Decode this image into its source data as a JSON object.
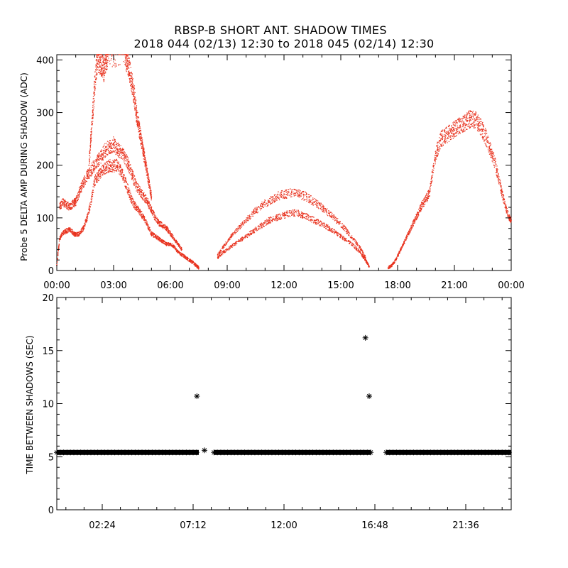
{
  "chart_data": [
    {
      "type": "scatter",
      "title": "RBSP-B SHORT ANT. SHADOW TIMES",
      "subtitle": "2018 044 (02/13) 12:30 to 2018 045 (02/14) 12:30",
      "ylabel": "Probe 5 DELTA AMP DURING SHADOW (ADC)",
      "xlabel": "",
      "xlim": [
        0,
        24
      ],
      "ylim": [
        0,
        410
      ],
      "x_tick_labels": [
        "00:00",
        "03:00",
        "06:00",
        "09:00",
        "12:00",
        "15:00",
        "18:00",
        "21:00",
        "00:00"
      ],
      "y_tick_labels": [
        "0",
        "100",
        "200",
        "300",
        "400"
      ],
      "y_ticks": [
        0,
        100,
        200,
        300,
        400
      ],
      "color": "#e8321e",
      "series": [
        {
          "x": [
            0.0,
            0.15,
            0.3,
            0.5,
            0.7,
            0.9,
            1.0,
            1.2,
            1.4,
            1.6,
            1.8,
            2.0,
            2.2,
            2.4,
            2.6,
            2.8,
            3.0,
            3.2,
            3.4,
            3.6,
            3.8,
            4.0,
            4.2,
            4.4,
            4.6,
            4.8,
            5.0,
            5.2,
            5.4,
            5.6,
            5.8,
            6.0,
            6.2,
            6.4,
            6.6,
            6.8,
            7.0,
            7.2,
            7.4,
            7.5
          ],
          "y": [
            10,
            60,
            70,
            75,
            78,
            70,
            68,
            70,
            80,
            100,
            130,
            170,
            180,
            190,
            195,
            200,
            198,
            200,
            190,
            170,
            150,
            130,
            120,
            110,
            100,
            85,
            70,
            65,
            60,
            55,
            50,
            50,
            45,
            35,
            30,
            25,
            20,
            15,
            8,
            5
          ]
        },
        {
          "x": [
            0.15,
            0.3,
            0.5,
            0.7,
            0.9,
            1.0,
            1.2,
            1.4,
            1.6,
            1.8,
            2.0,
            2.2,
            2.4,
            2.6,
            2.8,
            3.0,
            3.2,
            3.4,
            3.6,
            3.8,
            4.0,
            4.2,
            4.4,
            4.6,
            4.8,
            5.0,
            5.2,
            5.4,
            5.6,
            5.8,
            6.0,
            6.2,
            6.4,
            6.6
          ],
          "y": [
            120,
            130,
            125,
            120,
            128,
            130,
            150,
            165,
            180,
            190,
            200,
            210,
            220,
            230,
            235,
            240,
            230,
            225,
            215,
            200,
            180,
            160,
            150,
            140,
            130,
            115,
            100,
            90,
            85,
            80,
            70,
            60,
            50,
            40
          ]
        },
        {
          "x": [
            1.7,
            1.8,
            1.9,
            2.0,
            2.1,
            2.2,
            2.3,
            2.4,
            2.5,
            2.6,
            2.7,
            3.6,
            3.7,
            3.8,
            3.9,
            4.0,
            4.1,
            4.2,
            4.3,
            4.4,
            4.5,
            4.6,
            4.7,
            4.8,
            4.9,
            5.0
          ],
          "y": [
            200,
            250,
            300,
            350,
            390,
            400,
            395,
            390,
            380,
            400,
            410,
            410,
            400,
            390,
            370,
            350,
            330,
            300,
            280,
            260,
            240,
            220,
            200,
            180,
            160,
            140
          ]
        },
        {
          "x": [
            8.5,
            8.8,
            9.2,
            9.6,
            10.0,
            10.4,
            10.8,
            11.2,
            11.6,
            12.0,
            12.4,
            12.8,
            13.2,
            13.6,
            14.0,
            14.4,
            14.8,
            15.2,
            15.6,
            16.0,
            16.3,
            16.5
          ],
          "y": [
            25,
            35,
            45,
            55,
            65,
            75,
            85,
            95,
            100,
            105,
            110,
            108,
            102,
            95,
            88,
            80,
            70,
            60,
            50,
            35,
            20,
            8
          ]
        },
        {
          "x": [
            8.5,
            8.8,
            9.2,
            9.6,
            10.0,
            10.4,
            10.8,
            11.2,
            11.6,
            12.0,
            12.4,
            12.8,
            13.2,
            13.6,
            14.0,
            14.4,
            14.8,
            15.2,
            15.6,
            16.0,
            16.3
          ],
          "y": [
            30,
            45,
            65,
            80,
            95,
            110,
            122,
            132,
            140,
            145,
            148,
            145,
            140,
            130,
            120,
            108,
            95,
            80,
            62,
            45,
            25
          ]
        },
        {
          "x": [
            17.5,
            17.7,
            17.9,
            18.1,
            18.3,
            18.5,
            18.7,
            18.9,
            19.1,
            19.3,
            19.5,
            19.7,
            19.9,
            20.1,
            20.3,
            20.5,
            20.7,
            20.9,
            21.1,
            21.3,
            21.5,
            21.7,
            21.9,
            22.1,
            22.3,
            22.5,
            22.7,
            22.9,
            23.1,
            23.3,
            23.5,
            23.7,
            23.9,
            24.0
          ],
          "y": [
            5,
            10,
            20,
            35,
            50,
            65,
            80,
            95,
            110,
            125,
            135,
            150,
            200,
            230,
            250,
            255,
            260,
            265,
            270,
            275,
            280,
            285,
            290,
            285,
            280,
            265,
            250,
            230,
            210,
            180,
            150,
            120,
            100,
            95
          ]
        }
      ]
    },
    {
      "type": "scatter",
      "title": "",
      "ylabel": "TIME BETWEEN SHADOWS (SEC)",
      "xlabel": "",
      "xlim": [
        0,
        24
      ],
      "ylim": [
        0,
        20
      ],
      "x_tick_labels": [
        "02:24",
        "07:12",
        "12:00",
        "16:48",
        "21:36"
      ],
      "x_ticks": [
        2.4,
        7.2,
        12.0,
        16.8,
        21.6
      ],
      "y_tick_labels": [
        "0",
        "5",
        "10",
        "15",
        "20"
      ],
      "y_ticks": [
        0,
        5,
        10,
        15,
        20
      ],
      "color": "#000000",
      "baseline": {
        "y": 5.4,
        "segments": [
          [
            0.0,
            7.5
          ],
          [
            8.3,
            16.6
          ],
          [
            17.4,
            24.0
          ]
        ]
      },
      "outliers": [
        {
          "x": 7.4,
          "y": 10.7
        },
        {
          "x": 7.8,
          "y": 5.6
        },
        {
          "x": 16.3,
          "y": 16.2
        },
        {
          "x": 16.5,
          "y": 10.7
        }
      ]
    }
  ]
}
